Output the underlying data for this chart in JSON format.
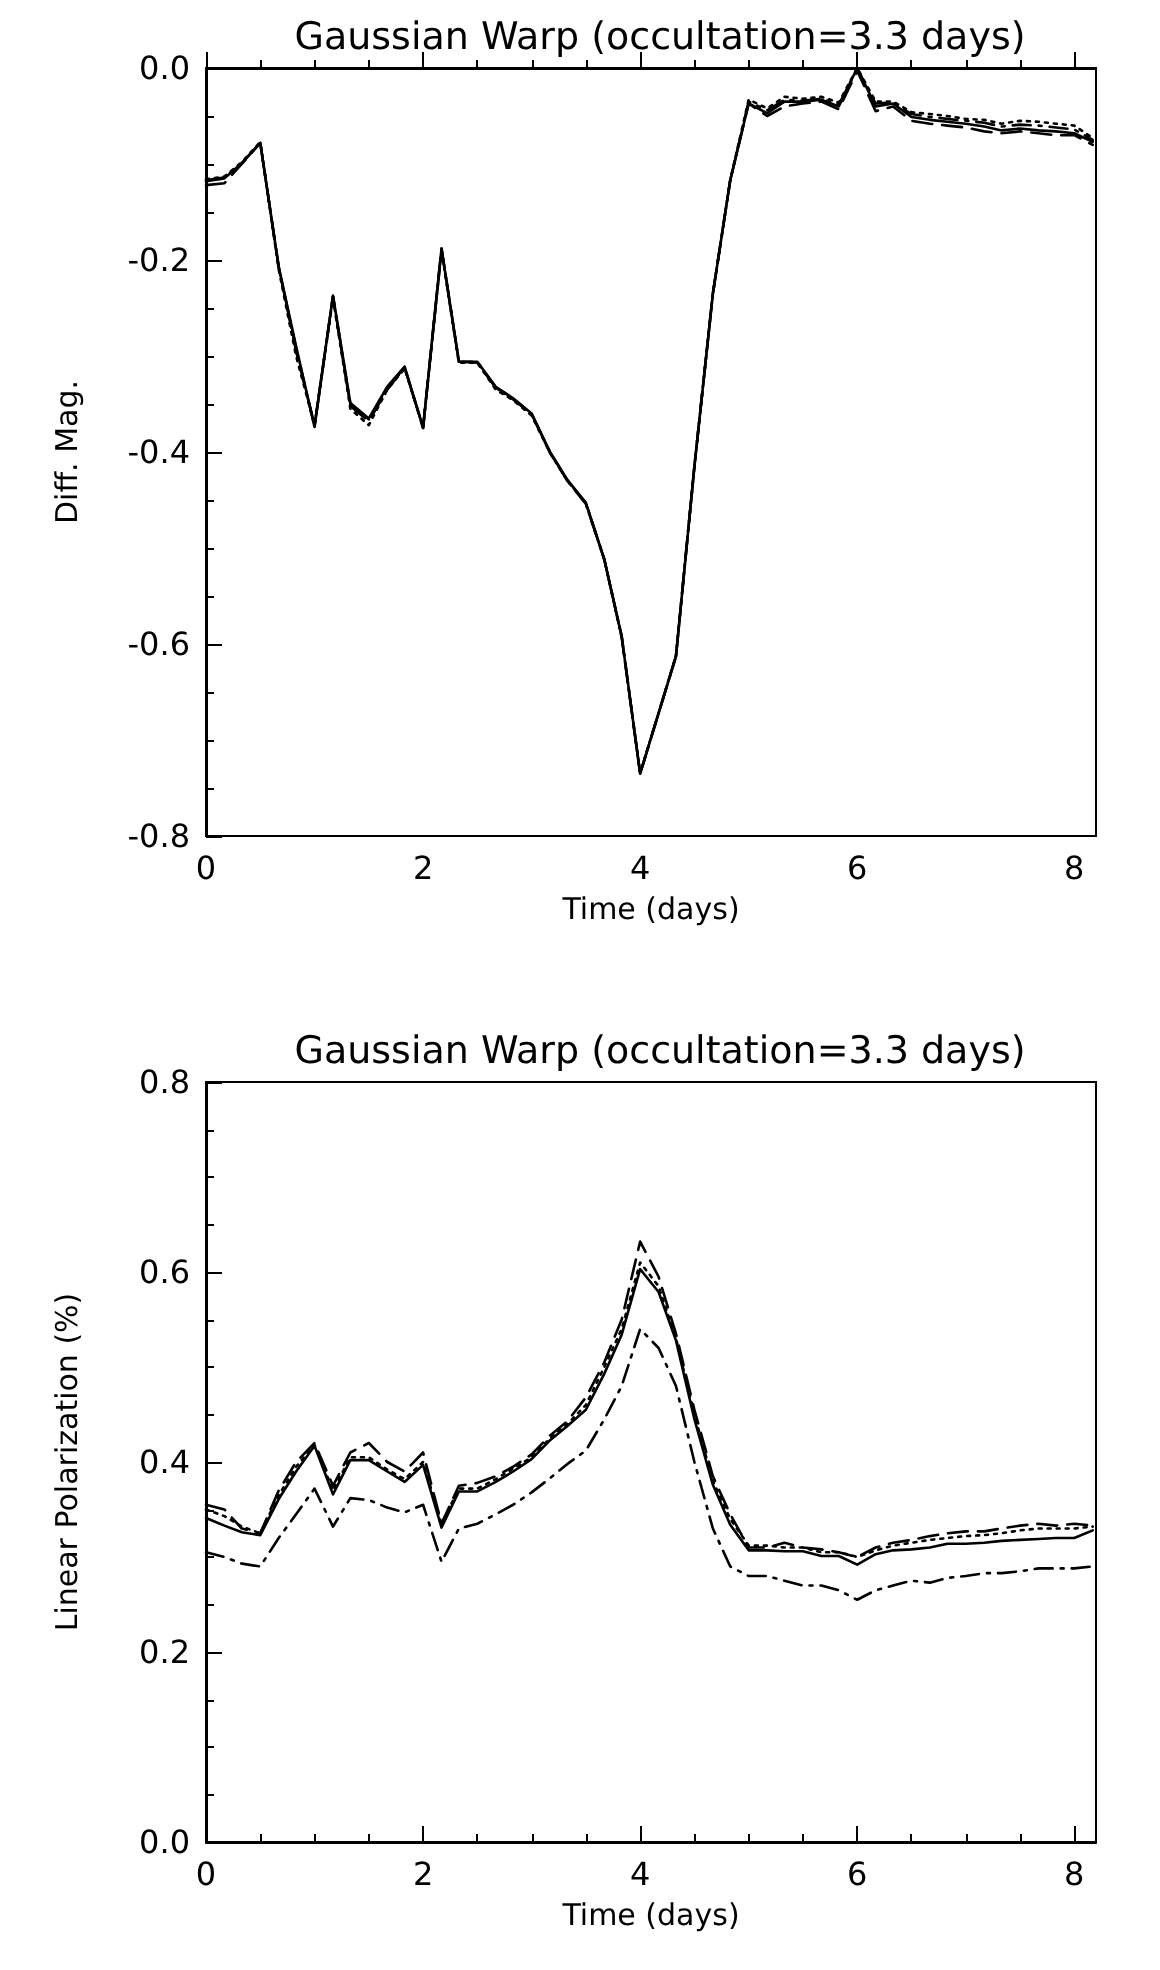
{
  "chart_data": [
    {
      "type": "line",
      "title": "Gaussian Warp (occultation=3.3 days)",
      "xlabel": "Time (days)",
      "ylabel": "Diff. Mag.",
      "x": [
        0,
        0.17,
        0.33,
        0.5,
        0.67,
        0.83,
        1,
        1.17,
        1.33,
        1.5,
        1.67,
        1.83,
        2,
        2.17,
        2.33,
        2.5,
        2.67,
        2.83,
        3,
        3.17,
        3.33,
        3.5,
        3.67,
        3.83,
        4,
        4.17,
        4.33,
        4.5,
        4.67,
        4.83,
        5,
        5.17,
        5.33,
        5.5,
        5.67,
        5.83,
        6,
        6.17,
        6.33,
        6.5,
        6.67,
        6.83,
        7,
        7.17,
        7.33,
        7.5,
        7.67,
        7.83,
        8,
        8.17
      ],
      "xlim": [
        0,
        8.2
      ],
      "xticks": [
        0,
        2,
        4,
        6,
        8
      ],
      "ylim": [
        -0.8,
        0
      ],
      "yticks": [
        {
          "value": -0.8,
          "label": "-0.8"
        },
        {
          "value": -0.6,
          "label": "-0.6"
        },
        {
          "value": -0.4,
          "label": "-0.4"
        },
        {
          "value": -0.2,
          "label": "-0.2"
        },
        {
          "value": 0,
          "label": "0.0"
        }
      ],
      "series": [
        {
          "color": "#000000",
          "line_style": "solid",
          "values": [
            -0.118,
            -0.115,
            -0.099,
            -0.078,
            -0.207,
            -0.29,
            -0.374,
            -0.237,
            -0.349,
            -0.365,
            -0.332,
            -0.311,
            -0.375,
            -0.188,
            -0.306,
            -0.306,
            -0.332,
            -0.344,
            -0.36,
            -0.4,
            -0.429,
            -0.453,
            -0.512,
            -0.592,
            -0.735,
            -0.672,
            -0.613,
            -0.415,
            -0.235,
            -0.117,
            -0.037,
            -0.047,
            -0.035,
            -0.035,
            -0.033,
            -0.04,
            0,
            -0.04,
            -0.037,
            -0.051,
            -0.054,
            -0.056,
            -0.058,
            -0.061,
            -0.065,
            -0.063,
            -0.065,
            -0.066,
            -0.068,
            -0.077
          ]
        },
        {
          "color": "#000000",
          "line_style": "dashed",
          "values": [
            -0.122,
            -0.12,
            -0.1,
            -0.078,
            -0.207,
            -0.295,
            -0.372,
            -0.238,
            -0.352,
            -0.368,
            -0.335,
            -0.312,
            -0.374,
            -0.188,
            -0.306,
            -0.307,
            -0.333,
            -0.345,
            -0.36,
            -0.401,
            -0.43,
            -0.454,
            -0.512,
            -0.593,
            -0.735,
            -0.672,
            -0.613,
            -0.415,
            -0.235,
            -0.117,
            -0.037,
            -0.05,
            -0.04,
            -0.037,
            -0.035,
            -0.043,
            -0.003,
            -0.045,
            -0.04,
            -0.055,
            -0.058,
            -0.06,
            -0.062,
            -0.066,
            -0.068,
            -0.066,
            -0.068,
            -0.07,
            -0.07,
            -0.08
          ]
        },
        {
          "color": "#000000",
          "line_style": "dotted",
          "values": [
            -0.116,
            -0.113,
            -0.098,
            -0.077,
            -0.21,
            -0.3,
            -0.372,
            -0.24,
            -0.355,
            -0.372,
            -0.335,
            -0.313,
            -0.374,
            -0.19,
            -0.307,
            -0.307,
            -0.335,
            -0.346,
            -0.362,
            -0.401,
            -0.43,
            -0.454,
            -0.512,
            -0.593,
            -0.734,
            -0.672,
            -0.612,
            -0.415,
            -0.235,
            -0.117,
            -0.033,
            -0.042,
            -0.03,
            -0.032,
            -0.03,
            -0.036,
            0,
            -0.035,
            -0.035,
            -0.046,
            -0.048,
            -0.05,
            -0.053,
            -0.054,
            -0.058,
            -0.055,
            -0.056,
            -0.058,
            -0.06,
            -0.073
          ]
        },
        {
          "color": "#000000",
          "line_style": "dashdot",
          "values": [
            -0.117,
            -0.114,
            -0.099,
            -0.078,
            -0.208,
            -0.292,
            -0.373,
            -0.238,
            -0.35,
            -0.366,
            -0.333,
            -0.312,
            -0.375,
            -0.189,
            -0.306,
            -0.306,
            -0.333,
            -0.345,
            -0.361,
            -0.4,
            -0.43,
            -0.453,
            -0.512,
            -0.592,
            -0.735,
            -0.672,
            -0.613,
            -0.415,
            -0.235,
            -0.117,
            -0.035,
            -0.044,
            -0.033,
            -0.034,
            -0.032,
            -0.038,
            -0.001,
            -0.037,
            -0.036,
            -0.048,
            -0.051,
            -0.053,
            -0.055,
            -0.057,
            -0.061,
            -0.059,
            -0.06,
            -0.062,
            -0.064,
            -0.075
          ]
        }
      ]
    },
    {
      "type": "line",
      "title": "Gaussian Warp (occultation=3.3 days)",
      "xlabel": "Time (days)",
      "ylabel": "Linear Polarization (%)",
      "x": [
        0,
        0.17,
        0.33,
        0.5,
        0.67,
        0.83,
        1,
        1.17,
        1.33,
        1.5,
        1.67,
        1.83,
        2,
        2.17,
        2.33,
        2.5,
        2.67,
        2.83,
        3,
        3.17,
        3.33,
        3.5,
        3.67,
        3.83,
        4,
        4.17,
        4.33,
        4.5,
        4.67,
        4.83,
        5,
        5.17,
        5.33,
        5.5,
        5.67,
        5.83,
        6,
        6.17,
        6.33,
        6.5,
        6.67,
        6.83,
        7,
        7.17,
        7.33,
        7.5,
        7.67,
        7.83,
        8,
        8.17
      ],
      "xlim": [
        0,
        8.2
      ],
      "xticks": [
        0,
        2,
        4,
        6,
        8
      ],
      "ylim": [
        0,
        0.8
      ],
      "yticks": [
        {
          "value": 0,
          "label": "0.0"
        },
        0.2,
        0.4,
        0.6,
        0.8
      ],
      "series": [
        {
          "color": "#000000",
          "line_style": "solid",
          "values": [
            0.341,
            0.333,
            0.326,
            0.323,
            0.361,
            0.39,
            0.417,
            0.366,
            0.402,
            0.402,
            0.39,
            0.379,
            0.397,
            0.331,
            0.369,
            0.369,
            0.379,
            0.39,
            0.403,
            0.423,
            0.438,
            0.455,
            0.493,
            0.534,
            0.603,
            0.579,
            0.528,
            0.445,
            0.376,
            0.334,
            0.307,
            0.307,
            0.306,
            0.306,
            0.301,
            0.301,
            0.292,
            0.303,
            0.307,
            0.308,
            0.31,
            0.314,
            0.314,
            0.315,
            0.317,
            0.318,
            0.319,
            0.32,
            0.32,
            0.328
          ]
        },
        {
          "color": "#000000",
          "line_style": "dashed",
          "values": [
            0.355,
            0.35,
            0.33,
            0.325,
            0.37,
            0.4,
            0.42,
            0.375,
            0.41,
            0.42,
            0.4,
            0.39,
            0.41,
            0.335,
            0.375,
            0.378,
            0.385,
            0.395,
            0.408,
            0.428,
            0.443,
            0.468,
            0.505,
            0.55,
            0.632,
            0.595,
            0.535,
            0.455,
            0.385,
            0.345,
            0.31,
            0.31,
            0.315,
            0.31,
            0.308,
            0.305,
            0.3,
            0.31,
            0.315,
            0.318,
            0.322,
            0.325,
            0.327,
            0.327,
            0.33,
            0.333,
            0.335,
            0.333,
            0.335,
            0.333
          ]
        },
        {
          "color": "#000000",
          "line_style": "dotted",
          "values": [
            0.35,
            0.343,
            0.332,
            0.325,
            0.365,
            0.395,
            0.418,
            0.37,
            0.405,
            0.405,
            0.392,
            0.382,
            0.4,
            0.335,
            0.372,
            0.372,
            0.382,
            0.393,
            0.405,
            0.425,
            0.44,
            0.46,
            0.5,
            0.54,
            0.61,
            0.585,
            0.53,
            0.45,
            0.38,
            0.34,
            0.312,
            0.312,
            0.31,
            0.31,
            0.305,
            0.305,
            0.3,
            0.307,
            0.312,
            0.315,
            0.318,
            0.32,
            0.322,
            0.323,
            0.325,
            0.328,
            0.33,
            0.33,
            0.33,
            0.332
          ]
        },
        {
          "color": "#000000",
          "line_style": "dashdot",
          "values": [
            0.305,
            0.3,
            0.293,
            0.29,
            0.32,
            0.345,
            0.372,
            0.332,
            0.362,
            0.36,
            0.352,
            0.347,
            0.355,
            0.295,
            0.33,
            0.335,
            0.345,
            0.355,
            0.368,
            0.383,
            0.398,
            0.412,
            0.445,
            0.48,
            0.54,
            0.52,
            0.48,
            0.4,
            0.33,
            0.29,
            0.28,
            0.28,
            0.275,
            0.27,
            0.27,
            0.265,
            0.255,
            0.265,
            0.27,
            0.275,
            0.273,
            0.278,
            0.28,
            0.283,
            0.283,
            0.285,
            0.288,
            0.288,
            0.288,
            0.29
          ]
        }
      ]
    }
  ]
}
